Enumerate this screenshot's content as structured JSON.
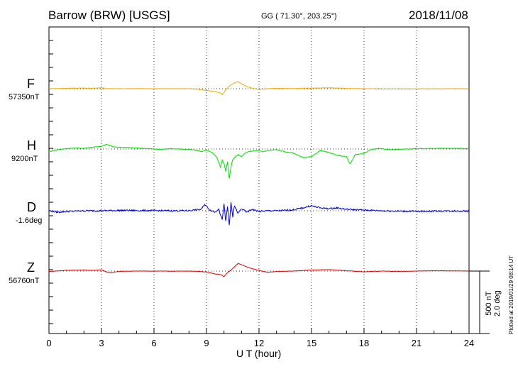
{
  "header": {
    "title": "Barrow (BRW)  [USGS]",
    "coords": "GG ( 71.30°, 203.25°)",
    "date": "2018/11/08"
  },
  "components": [
    {
      "letter": "F",
      "baseline": "57350nT",
      "color": "#f0a800"
    },
    {
      "letter": "H",
      "baseline": "9200nT",
      "color": "#00dd00"
    },
    {
      "letter": "D",
      "baseline": "-1.6deg",
      "color": "#0000dd"
    },
    {
      "letter": "Z",
      "baseline": "56760nT",
      "color": "#dd0000"
    }
  ],
  "scale_label": {
    "line1": "500 nT",
    "line2": "2.0 deg"
  },
  "plotted_note": "Plotted at 2019/01/29 08:14 UT",
  "chart_data": {
    "type": "line",
    "x_axis": {
      "label": "U T (hour)",
      "range": [
        0,
        24
      ],
      "ticks": [
        0,
        3,
        6,
        9,
        12,
        15,
        18,
        21,
        24
      ]
    },
    "grid": "dotted vertical every 3 hours, dotted baseline per component",
    "y_units": "nT offset from baseline",
    "series": [
      {
        "name": "F",
        "x": [
          0,
          1,
          2,
          2.5,
          3,
          3.3,
          4,
          5,
          6,
          7,
          8,
          8.6,
          9,
          9.5,
          9.8,
          9.9,
          10.1,
          10.3,
          10.6,
          10.8,
          11,
          11.3,
          11.6,
          12,
          12.5,
          13,
          14,
          15,
          16,
          17,
          18,
          19,
          20,
          21,
          22,
          23,
          24
        ],
        "y": [
          0,
          5,
          8,
          6,
          12,
          2,
          0,
          1,
          0,
          0,
          0,
          -10,
          -25,
          -40,
          -60,
          -85,
          -20,
          40,
          80,
          100,
          70,
          30,
          10,
          -10,
          0,
          5,
          2,
          8,
          12,
          5,
          0,
          -3,
          -3,
          -2,
          -2,
          -1,
          0
        ]
      },
      {
        "name": "H",
        "x": [
          0,
          0.5,
          1,
          1.5,
          2,
          2.5,
          3,
          3.3,
          3.7,
          4,
          4.5,
          5,
          6,
          6.5,
          7,
          7.5,
          8,
          8.5,
          8.7,
          9,
          9.3,
          9.6,
          9.8,
          9.9,
          10,
          10.1,
          10.2,
          10.3,
          10.4,
          10.5,
          10.6,
          10.8,
          11,
          11.2,
          11.5,
          12,
          12.2,
          12.5,
          13,
          13.5,
          14,
          14.5,
          15,
          15.5,
          16,
          16.5,
          17,
          17.2,
          17.5,
          18,
          18.4,
          18.8,
          19.5,
          20,
          21,
          22,
          23,
          24
        ],
        "y": [
          -35,
          -10,
          5,
          15,
          10,
          25,
          40,
          65,
          30,
          25,
          20,
          15,
          0,
          -5,
          5,
          0,
          -5,
          -20,
          -35,
          -15,
          -45,
          -120,
          -260,
          -150,
          -200,
          -310,
          -180,
          -420,
          -250,
          -150,
          -120,
          -80,
          -110,
          -60,
          -30,
          -25,
          -40,
          -20,
          -10,
          -40,
          -60,
          -120,
          -110,
          -20,
          -50,
          -90,
          -110,
          -210,
          -80,
          -60,
          -10,
          10,
          -10,
          -5,
          5,
          8,
          10,
          5
        ]
      },
      {
        "name": "D",
        "x": [
          0,
          0.5,
          1,
          1.5,
          2,
          3,
          4,
          5,
          6,
          7,
          8,
          8.7,
          8.9,
          9.2,
          9.5,
          9.7,
          9.8,
          9.9,
          10,
          10.1,
          10.2,
          10.3,
          10.4,
          10.5,
          10.6,
          10.8,
          11,
          11.3,
          11.6,
          12,
          12.5,
          13,
          13.5,
          14,
          14.5,
          15,
          15.5,
          16,
          16.5,
          17,
          17.5,
          18,
          19,
          20,
          21,
          22,
          23,
          24
        ],
        "y": [
          0,
          -20,
          -10,
          -5,
          0,
          0,
          5,
          3,
          2,
          0,
          2,
          20,
          90,
          10,
          -20,
          30,
          -60,
          -120,
          90,
          -150,
          60,
          -200,
          110,
          -90,
          70,
          -40,
          30,
          -20,
          20,
          -10,
          0,
          0,
          5,
          15,
          40,
          70,
          40,
          30,
          40,
          20,
          15,
          10,
          0,
          -5,
          -8,
          -5,
          -3,
          -5
        ]
      },
      {
        "name": "Z",
        "x": [
          0,
          1,
          2,
          2.5,
          3,
          3.3,
          3.6,
          4,
          5,
          6,
          7,
          8,
          8.6,
          9,
          9.5,
          9.8,
          9.9,
          10,
          10.2,
          10.4,
          10.6,
          10.8,
          11,
          11.3,
          11.6,
          12,
          12.5,
          13,
          14,
          15,
          16,
          17,
          18,
          19,
          20,
          21,
          22,
          23,
          24
        ],
        "y": [
          -5,
          10,
          15,
          10,
          18,
          -15,
          -20,
          -5,
          0,
          0,
          -2,
          0,
          -5,
          -15,
          -40,
          -50,
          -60,
          -80,
          -20,
          15,
          60,
          110,
          90,
          60,
          35,
          10,
          -20,
          -5,
          0,
          15,
          20,
          5,
          -10,
          0,
          -5,
          0,
          5,
          3,
          0
        ]
      }
    ]
  }
}
